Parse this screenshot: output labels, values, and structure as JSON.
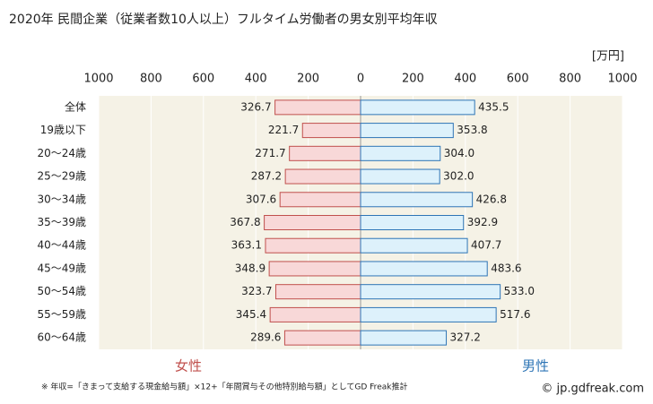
{
  "chart_data": {
    "type": "butterfly",
    "title": "2020年 民間企業（従業者数10人以上）フルタイム労働者の男女別平均年収",
    "unit": "[万円]",
    "categories": [
      "全体",
      "19歳以下",
      "20～24歳",
      "25～29歳",
      "30～34歳",
      "35～39歳",
      "40～44歳",
      "45～49歳",
      "50～54歳",
      "55～59歳",
      "60～64歳"
    ],
    "series": [
      {
        "name": "女性",
        "side": "left",
        "color": "#f8d8d8",
        "edgecolor": "#c0504d",
        "values": [
          326.7,
          221.7,
          271.7,
          287.2,
          307.6,
          367.8,
          363.1,
          348.9,
          323.7,
          345.4,
          289.6
        ],
        "value_labels": [
          "326.7",
          "221.7",
          "271.7",
          "287.2",
          "307.6",
          "367.8",
          "363.1",
          "348.9",
          "323.7",
          "345.4",
          "289.6"
        ]
      },
      {
        "name": "男性",
        "side": "right",
        "color": "#ddf1fb",
        "edgecolor": "#2e75b6",
        "values": [
          435.5,
          353.8,
          304.0,
          302.0,
          426.8,
          392.9,
          407.7,
          483.6,
          533.0,
          517.6,
          327.2
        ],
        "value_labels": [
          "435.5",
          "353.8",
          "304.0",
          "302.0",
          "426.8",
          "392.9",
          "407.7",
          "483.6",
          "533.0",
          "517.6",
          "327.2"
        ]
      }
    ],
    "xlim": [
      0,
      1000
    ],
    "xticks": [
      0,
      200,
      400,
      600,
      800,
      1000
    ],
    "grid": true,
    "footnote": "※ 年収=「きまって支給する現金給与額」×12+「年間賞与その他特別給与額」としてGD Freak推計",
    "credit": "© jp.gdfreak.com"
  }
}
